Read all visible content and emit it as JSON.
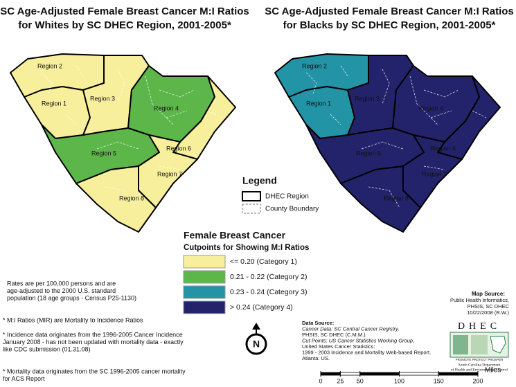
{
  "maps": [
    {
      "title_lines": [
        "SC Age-Adjusted Female Breast Cancer M:I Ratios",
        "for Whites by SC DHEC Region, 2001-2005*"
      ],
      "regions": [
        {
          "label": "Region 1",
          "category": 0
        },
        {
          "label": "Region 2",
          "category": 0
        },
        {
          "label": "Region 3",
          "category": 0
        },
        {
          "label": "Region 4",
          "category": 1
        },
        {
          "label": "Region 5",
          "category": 1
        },
        {
          "label": "Region 6",
          "category": 0
        },
        {
          "label": "Region 7",
          "category": 0
        },
        {
          "label": "Region 8",
          "category": 0
        }
      ]
    },
    {
      "title_lines": [
        "SC Age-Adjusted Female Breast Cancer M:I Ratios",
        "for Blacks by SC DHEC Region, 2001-2005*"
      ],
      "regions": [
        {
          "label": "Region 1",
          "category": 2
        },
        {
          "label": "Region 2",
          "category": 2
        },
        {
          "label": "Region 3",
          "category": 3
        },
        {
          "label": "Region 4",
          "category": 3
        },
        {
          "label": "Region 5",
          "category": 3
        },
        {
          "label": "Region 6",
          "category": 3
        },
        {
          "label": "Region 7",
          "category": 3
        },
        {
          "label": "Region 8",
          "category": 3
        }
      ]
    }
  ],
  "legend": {
    "title": "Legend",
    "items": [
      "DHEC Region",
      "County Boundary"
    ]
  },
  "cutpoints": {
    "title": "Female Breast Cancer",
    "subtitle": "Cutpoints for Showing M:I Ratios",
    "categories": [
      {
        "label": "<= 0.20 (Category 1)",
        "color": "#f8ef9c"
      },
      {
        "label": "0.21 - 0.22 (Category 2)",
        "color": "#5db64a"
      },
      {
        "label": "0.23 - 0.24 (Category 3)",
        "color": "#2393a6"
      },
      {
        "label": "> 0.24 (Category 4)",
        "color": "#23236b"
      }
    ]
  },
  "notes": [
    [
      "Rates are per 100,000 persons and are",
      "age-adjusted to the 2000 U.S. standard",
      "population (18 age groups - Census P25-1130)"
    ],
    [
      "* M:I Ratios (MIR) are Mortality to Incidence Ratios"
    ],
    [
      "* Incidence data originates from the 1996-2005 Cancer Incidence",
      "January 2008 - has not been updated with mortality data - exactly",
      "like CDC submission  (01.31.08)"
    ],
    [
      "* Mortality data originates from the SC 1996-2005 cancer mortality",
      "for ACS Report"
    ]
  ],
  "map_source": [
    "Map Source:",
    "Public Health Informatics,",
    "PHSIS, SC DHEC",
    "10/22/2008 (R.W.)"
  ],
  "data_source": [
    "Data Source:",
    "Cancer Data: SC Central Cancer Registry,",
    "PHSIS, SC DHEC (C.M.M.)",
    "Cut Points: US Cancer Statistics Working Group,",
    "United States Cancer Statistics:",
    "1999 - 2003 Incidence and Mortality Web-based Report.",
    "Atlanta: US."
  ],
  "north": "N",
  "logo": {
    "name": "DHEC",
    "motto": "PROMOTE PROTECT PROSPER",
    "agency": [
      "South Carolina Department",
      "of Health and Environmental Control"
    ]
  },
  "scale": {
    "ticks": [
      0,
      25,
      50,
      100,
      150,
      200
    ],
    "unit": "Miles"
  }
}
